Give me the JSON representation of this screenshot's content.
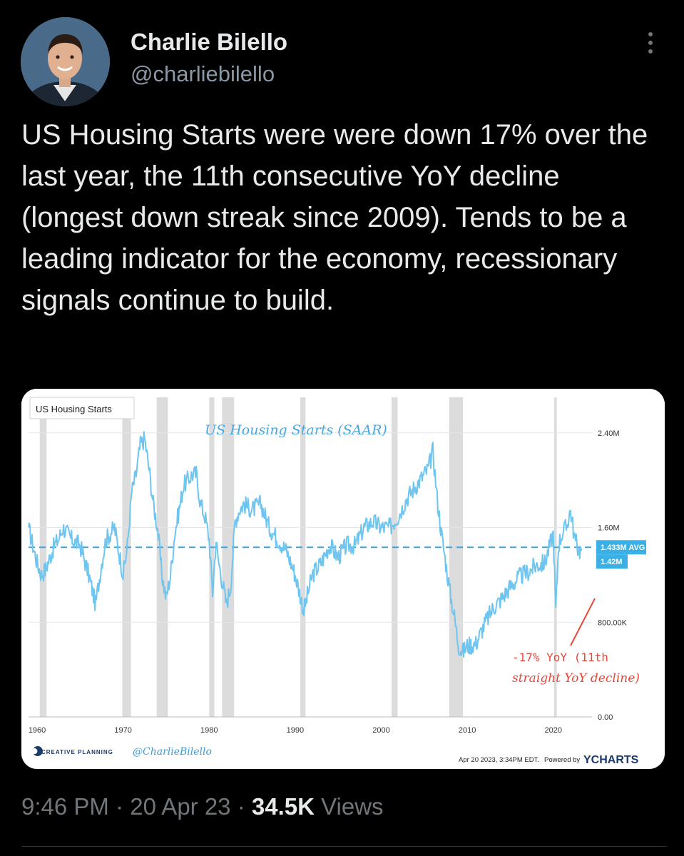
{
  "author": {
    "name": "Charlie Bilello",
    "handle": "@charliebilello"
  },
  "tweet": {
    "text": "US Housing Starts were were down 17% over the last year, the 11th consecutive YoY decline (longest down streak since 2009). Tends to be a leading indicator for the economy, recessionary signals continue to build."
  },
  "meta": {
    "time": "9:46 PM",
    "separator": "·",
    "date": "20 Apr 23",
    "views_count": "34.5K",
    "views_label": "Views"
  },
  "icons": {
    "avatar": "avatar-photo",
    "more": "more-vertical-icon"
  },
  "colors": {
    "background": "#000000",
    "text": "#e7e9ea",
    "muted": "#71767b",
    "series": "#6ec6f0",
    "recession": "#dcdcdc",
    "annotation": "#e8463a",
    "title": "#4aa8e0"
  },
  "chart_data": {
    "type": "line",
    "panel_label": "US Housing Starts",
    "title": "US Housing Starts (SAAR)",
    "ylim": [
      0,
      2.7
    ],
    "y_ticks": [
      {
        "value": 0,
        "label": "0.00"
      },
      {
        "value": 0.8,
        "label": "800.00K"
      },
      {
        "value": 1.6,
        "label": "1.60M"
      },
      {
        "value": 2.4,
        "label": "2.40M"
      }
    ],
    "x_ticks": [
      1960,
      1970,
      1980,
      1990,
      2000,
      2010,
      2020
    ],
    "xlim": [
      1959,
      2024.5
    ],
    "avg_value": 1.433,
    "avg_label": "1.433M AVG",
    "last_label": "1.42M",
    "recessions": [
      [
        1960.3,
        1961.1
      ],
      [
        1969.9,
        1970.9
      ],
      [
        1973.9,
        1975.2
      ],
      [
        1980.0,
        1980.6
      ],
      [
        1981.5,
        1982.9
      ],
      [
        1990.6,
        1991.2
      ],
      [
        2001.2,
        2001.9
      ],
      [
        2007.9,
        2009.5
      ],
      [
        2020.1,
        2020.4
      ]
    ],
    "series": [
      {
        "x": [
          1959,
          1960,
          1960.5,
          1961,
          1961.5,
          1962,
          1962.5,
          1963,
          1963.5,
          1964,
          1965,
          1966,
          1966.8,
          1967.5,
          1968,
          1968.5,
          1969,
          1969.5,
          1970,
          1970.5,
          1971,
          1971.5,
          1972,
          1972.5,
          1973,
          1973.5,
          1974,
          1974.5,
          1975,
          1975.5,
          1976,
          1977,
          1978,
          1978.5,
          1979,
          1979.5,
          1980,
          1980.4,
          1980.8,
          1981,
          1981.5,
          1982,
          1982.5,
          1983,
          1983.5,
          1984,
          1985,
          1986,
          1987,
          1988,
          1989,
          1990,
          1990.5,
          1991,
          1991.5,
          1992,
          1993,
          1994,
          1995,
          1996,
          1997,
          1998,
          1999,
          2000,
          2001,
          2002,
          2003,
          2004,
          2005,
          2005.5,
          2006,
          2006.5,
          2007,
          2007.5,
          2008,
          2008.5,
          2009,
          2009.5,
          2010,
          2011,
          2012,
          2013,
          2014,
          2015,
          2016,
          2017,
          2018,
          2019,
          2020,
          2020.3,
          2020.6,
          2021,
          2021.5,
          2022,
          2022.5,
          2023,
          2023.3
        ],
        "values": [
          1.6,
          1.3,
          1.2,
          1.25,
          1.35,
          1.45,
          1.5,
          1.6,
          1.55,
          1.5,
          1.45,
          1.2,
          0.95,
          1.3,
          1.5,
          1.55,
          1.6,
          1.4,
          1.2,
          1.45,
          1.9,
          2.05,
          2.3,
          2.35,
          2.1,
          1.8,
          1.6,
          1.2,
          1.0,
          1.2,
          1.55,
          1.95,
          2.05,
          2.05,
          1.8,
          1.7,
          1.5,
          1.05,
          1.5,
          1.35,
          1.15,
          0.95,
          1.1,
          1.65,
          1.75,
          1.8,
          1.75,
          1.8,
          1.6,
          1.5,
          1.4,
          1.2,
          1.05,
          0.9,
          1.05,
          1.2,
          1.3,
          1.45,
          1.35,
          1.45,
          1.45,
          1.6,
          1.65,
          1.6,
          1.6,
          1.7,
          1.85,
          1.95,
          2.05,
          2.1,
          2.25,
          1.85,
          1.55,
          1.3,
          1.05,
          0.85,
          0.6,
          0.55,
          0.6,
          0.62,
          0.78,
          0.92,
          1.0,
          1.1,
          1.18,
          1.22,
          1.28,
          1.3,
          1.55,
          0.9,
          1.45,
          1.55,
          1.6,
          1.75,
          1.5,
          1.4,
          1.42
        ]
      }
    ],
    "annotation": {
      "line1": "-17% YoY (11th",
      "line2": "straight YoY decline)"
    },
    "branding": {
      "left_brand": "CREATIVE PLANNING",
      "left_handle": "@CharlieBilello",
      "timestamp": "Apr 20 2023, 3:34PM EDT.",
      "powered_by": "Powered by",
      "charts_brand": "YCHARTS"
    }
  }
}
